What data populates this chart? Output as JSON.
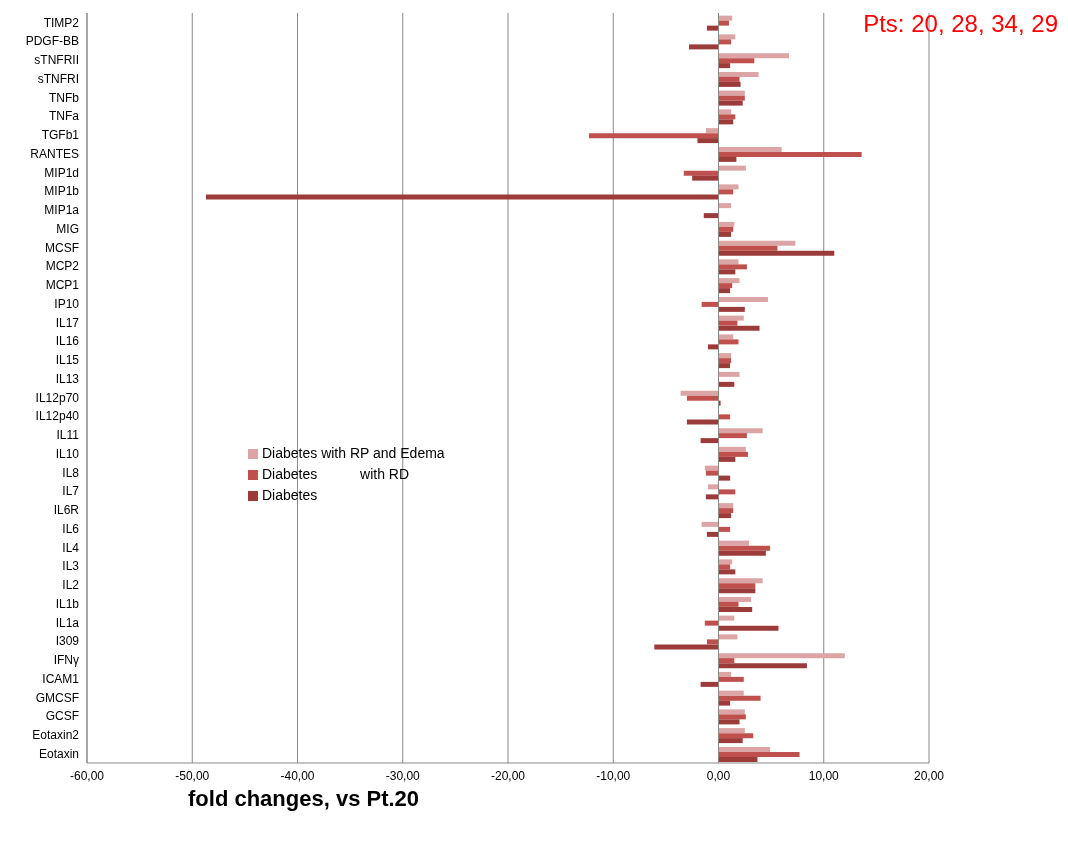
{
  "chart_data": {
    "type": "bar",
    "orientation": "horizontal",
    "categories": [
      "TIMP2",
      "PDGF-BB",
      "sTNFRII",
      "sTNFRI",
      "TNFb",
      "TNFa",
      "TGFb1",
      "RANTES",
      "MIP1d",
      "MIP1b",
      "MIP1a",
      "MIG",
      "MCSF",
      "MCP2",
      "MCP1",
      "IP10",
      "IL17",
      "IL16",
      "IL15",
      "IL13",
      "IL12p70",
      "IL12p40",
      "IL11",
      "IL10",
      "IL8",
      "IL7",
      "IL6R",
      "IL6",
      "IL4",
      "IL3",
      "IL2",
      "IL1b",
      "IL1a",
      "I309",
      "IFNγ",
      "ICAM1",
      "GMCSF",
      "GCSF",
      "Eotaxin2",
      "Eotaxin"
    ],
    "series": [
      {
        "name": "Diabetes with RP and Edema",
        "color": "#dba5a5",
        "values": [
          1.3,
          1.6,
          6.7,
          3.8,
          2.5,
          1.2,
          -1.2,
          6.0,
          2.6,
          1.9,
          1.2,
          1.5,
          7.3,
          1.9,
          2.0,
          4.7,
          2.4,
          1.4,
          1.2,
          2.0,
          -3.6,
          null,
          4.2,
          2.6,
          -1.3,
          -1.0,
          1.4,
          -1.6,
          2.9,
          1.3,
          4.2,
          3.1,
          1.5,
          1.8,
          12.0,
          1.2,
          2.4,
          2.5,
          2.5,
          4.9
        ]
      },
      {
        "name": "Diabetes           with RD",
        "color": "#c0504d",
        "values": [
          1.0,
          1.2,
          3.4,
          2.0,
          2.5,
          1.6,
          -12.3,
          13.6,
          -3.3,
          1.4,
          null,
          1.4,
          5.6,
          2.7,
          1.3,
          -1.6,
          1.8,
          1.9,
          1.2,
          null,
          -3.0,
          1.1,
          2.7,
          2.8,
          -1.2,
          1.6,
          1.4,
          1.1,
          4.9,
          1.1,
          3.5,
          1.9,
          -1.3,
          -1.1,
          1.5,
          2.4,
          4.0,
          2.6,
          3.3,
          7.7
        ]
      },
      {
        "name": "Diabetes",
        "color": "#9b3c3a",
        "values": [
          -1.1,
          -2.8,
          1.1,
          2.1,
          2.3,
          1.4,
          -2.0,
          1.7,
          -2.5,
          -48.7,
          -1.4,
          1.2,
          11.0,
          1.6,
          1.1,
          2.5,
          3.9,
          -1.0,
          1.1,
          1.5,
          0.2,
          -3.0,
          -1.7,
          1.6,
          1.1,
          -1.2,
          1.2,
          -1.1,
          4.5,
          1.6,
          3.5,
          3.2,
          5.7,
          -6.1,
          8.4,
          -1.7,
          1.1,
          2.0,
          2.3,
          3.7
        ]
      }
    ],
    "xlim": [
      -60,
      20
    ],
    "xticks": [
      {
        "value": -60,
        "label": "-60,00"
      },
      {
        "value": -50,
        "label": "-50,00"
      },
      {
        "value": -40,
        "label": "-40,00"
      },
      {
        "value": -30,
        "label": "-30,00"
      },
      {
        "value": -20,
        "label": "-20,00"
      },
      {
        "value": -10,
        "label": "-10,00"
      },
      {
        "value": 0,
        "label": "0,00"
      },
      {
        "value": 10,
        "label": "10,00"
      },
      {
        "value": 20,
        "label": "20,00"
      }
    ],
    "grid": "x",
    "legend": "left",
    "annotations": [
      "Pts: 20, 28, 34, 29",
      "fold changes, vs Pt.20"
    ]
  }
}
